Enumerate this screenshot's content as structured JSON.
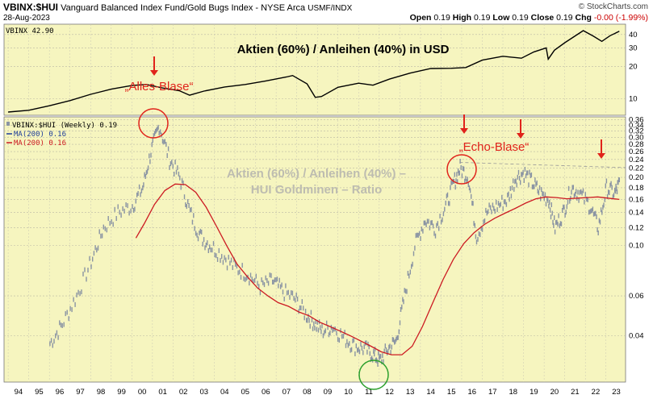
{
  "header": {
    "symbol": "VBINX:$HUI",
    "description": "Vanguard Balanced Index Fund/Gold Bugs Index - NYSE Arca",
    "exchange": "USMF/INDX",
    "site": "© StockCharts.com",
    "date": "28-Aug-2023",
    "open_label": "Open",
    "open": "0.19",
    "high_label": "High",
    "high": "0.19",
    "low_label": "Low",
    "low": "0.19",
    "close_label": "Close",
    "close": "0.19",
    "chg_label": "Chg",
    "chg": "-0.00 (-1.99%)"
  },
  "colors": {
    "plot_bg": "#f6f5bf",
    "ratio": "#8a94a3",
    "ma": "#cc1a22",
    "top_line": "#000000",
    "annotation": "#e0231b",
    "circle_green": "#2ca02c",
    "watermark": "#bdbcb0"
  },
  "chart_data": [
    {
      "type": "line",
      "name": "top-panel",
      "legend": "VBINX 42.90",
      "title": "Aktien (60%) / Anleihen (40%) in USD",
      "y_scale": "log",
      "ylim": [
        7,
        50
      ],
      "y_ticks": [
        "10",
        "20",
        "30",
        "40"
      ],
      "x": [
        1994.0,
        1995.0,
        1996.0,
        1997.0,
        1998.0,
        1999.0,
        2000.0,
        2000.7,
        2001.5,
        2002.3,
        2002.8,
        2003.5,
        2004.5,
        2005.5,
        2006.5,
        2007.5,
        2007.8,
        2008.5,
        2008.9,
        2009.2,
        2010.0,
        2011.0,
        2011.7,
        2012.5,
        2013.5,
        2014.5,
        2015.5,
        2016.2,
        2017.0,
        2018.0,
        2018.9,
        2019.5,
        2020.1,
        2020.2,
        2020.5,
        2021.0,
        2021.9,
        2022.4,
        2022.8,
        2023.2,
        2023.65
      ],
      "values": [
        7.5,
        7.8,
        8.6,
        9.6,
        11.0,
        12.3,
        13.3,
        13.6,
        12.6,
        11.9,
        10.8,
        11.8,
        12.9,
        13.6,
        14.7,
        16.0,
        16.5,
        13.8,
        10.3,
        10.5,
        12.8,
        14.0,
        13.4,
        15.3,
        17.4,
        19.2,
        19.3,
        19.6,
        23.0,
        25.0,
        24.0,
        27.5,
        30.0,
        23.5,
        28.5,
        33.5,
        43.5,
        38.5,
        34.5,
        39.0,
        42.9
      ]
    },
    {
      "type": "scatter",
      "name": "ratio-panel",
      "title": "Aktien (60%) / Anleihen (40%) – HUI  Goldminen – Ratio",
      "y_scale": "log",
      "ylim": [
        0.025,
        0.37
      ],
      "y_ticks": [
        "0.04",
        "0.06",
        "0.10",
        "0.12",
        "0.14",
        "0.16",
        "0.18",
        "0.20",
        "0.22",
        "0.24",
        "0.26",
        "0.28",
        "0.30",
        "0.32",
        "0.34",
        "0.36"
      ],
      "x_ticks": [
        "94",
        "95",
        "96",
        "97",
        "98",
        "99",
        "00",
        "01",
        "02",
        "03",
        "04",
        "05",
        "06",
        "07",
        "08",
        "09",
        "10",
        "11",
        "12",
        "13",
        "14",
        "15",
        "16",
        "17",
        "18",
        "19",
        "20",
        "21",
        "22",
        "23"
      ],
      "legend": [
        "VBINX:$HUI (Weekly) 0.19",
        "MA(200) 0.16",
        "MA(200) 0.16"
      ],
      "ratio_x": [
        1996.0,
        1996.6,
        1997.3,
        1998.0,
        1998.6,
        1999.3,
        2000.0,
        2000.5,
        2000.9,
        2001.3,
        2001.8,
        2002.3,
        2002.8,
        2003.3,
        2003.8,
        2004.4,
        2005.0,
        2005.6,
        2006.2,
        2006.8,
        2007.3,
        2007.9,
        2008.4,
        2008.8,
        2009.2,
        2009.7,
        2010.3,
        2010.8,
        2011.3,
        2011.7,
        2012.0,
        2012.4,
        2012.8,
        2013.2,
        2013.7,
        2014.2,
        2014.7,
        2015.2,
        2015.6,
        2015.9,
        2016.3,
        2016.7,
        2017.2,
        2017.7,
        2018.2,
        2018.6,
        2019.0,
        2019.4,
        2019.8,
        2020.2,
        2020.5,
        2020.9,
        2021.3,
        2021.7,
        2022.2,
        2022.6,
        2023.0,
        2023.4,
        2023.65
      ],
      "ratio_values": [
        0.037,
        0.045,
        0.06,
        0.085,
        0.12,
        0.14,
        0.15,
        0.18,
        0.26,
        0.34,
        0.24,
        0.2,
        0.14,
        0.11,
        0.1,
        0.09,
        0.08,
        0.075,
        0.066,
        0.07,
        0.063,
        0.058,
        0.05,
        0.046,
        0.042,
        0.044,
        0.039,
        0.036,
        0.035,
        0.033,
        0.031,
        0.035,
        0.038,
        0.06,
        0.1,
        0.13,
        0.12,
        0.15,
        0.19,
        0.22,
        0.2,
        0.11,
        0.14,
        0.15,
        0.16,
        0.2,
        0.21,
        0.19,
        0.17,
        0.16,
        0.12,
        0.14,
        0.18,
        0.17,
        0.15,
        0.12,
        0.18,
        0.17,
        0.19
      ],
      "ma_x": [
        2000.2,
        2000.6,
        2001.1,
        2001.6,
        2002.1,
        2002.6,
        2003.1,
        2003.6,
        2004.1,
        2004.6,
        2005.1,
        2005.6,
        2006.1,
        2006.6,
        2007.1,
        2007.6,
        2008.1,
        2008.6,
        2009.1,
        2009.6,
        2010.1,
        2010.6,
        2011.1,
        2011.6,
        2012.1,
        2012.6,
        2013.1,
        2013.6,
        2014.1,
        2014.6,
        2015.1,
        2015.6,
        2016.1,
        2016.6,
        2017.1,
        2017.6,
        2018.1,
        2018.6,
        2019.1,
        2019.6,
        2020.1,
        2020.6,
        2021.1,
        2021.6,
        2022.1,
        2022.6,
        2023.1,
        2023.65
      ],
      "ma_values": [
        0.108,
        0.125,
        0.152,
        0.175,
        0.187,
        0.186,
        0.172,
        0.148,
        0.122,
        0.1,
        0.083,
        0.073,
        0.065,
        0.06,
        0.056,
        0.054,
        0.051,
        0.049,
        0.046,
        0.044,
        0.042,
        0.04,
        0.038,
        0.036,
        0.034,
        0.033,
        0.033,
        0.036,
        0.044,
        0.056,
        0.071,
        0.087,
        0.102,
        0.114,
        0.124,
        0.132,
        0.139,
        0.146,
        0.154,
        0.161,
        0.164,
        0.163,
        0.161,
        0.162,
        0.163,
        0.164,
        0.162,
        0.16
      ]
    }
  ],
  "annotations": {
    "alles_blase": "„Alles-Blase“",
    "echo_blase": "„Echo-Blase“"
  }
}
